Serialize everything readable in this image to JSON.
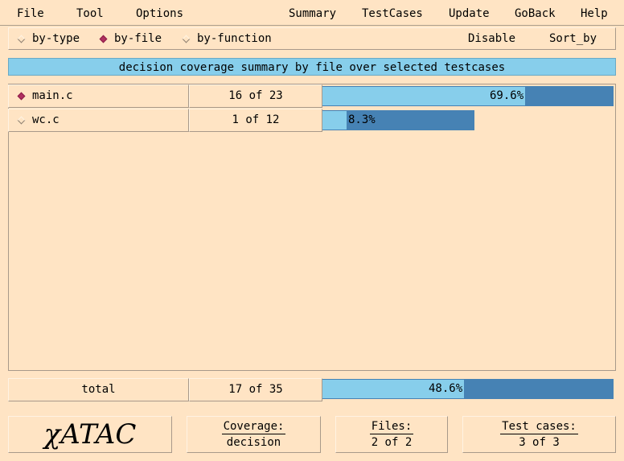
{
  "menubar": {
    "left": [
      "File",
      "Tool",
      "Options"
    ],
    "right": [
      "Summary",
      "TestCases",
      "Update",
      "GoBack",
      "Help"
    ]
  },
  "modes": {
    "options": [
      {
        "label": "by-type",
        "selected": false
      },
      {
        "label": "by-file",
        "selected": true
      },
      {
        "label": "by-function",
        "selected": false
      }
    ],
    "disable_label": "Disable",
    "sort_label": "Sort_by"
  },
  "banner": "decision coverage summary by file over selected testcases",
  "files": [
    {
      "name": "main.c",
      "selected": true,
      "count": "16 of 23",
      "percent_label": "69.6%",
      "fraction": 0.696
    },
    {
      "name": "wc.c",
      "selected": false,
      "count": "1 of 12",
      "percent_label": "8.3%",
      "fraction": 0.083
    }
  ],
  "total": {
    "label": "total",
    "count": "17 of 35",
    "percent_label": "48.6%",
    "fraction": 0.486
  },
  "status": {
    "logo": "χATAC",
    "coverage": {
      "title": "Coverage:",
      "value": "decision"
    },
    "files": {
      "title": "Files:",
      "value": "2 of 2"
    },
    "testcases": {
      "title": "Test cases:",
      "value": "3 of 3"
    }
  },
  "colors": {
    "background": "#ffe4c4",
    "bar_fill": "#87ceeb",
    "bar_track": "#4682b4",
    "selected_marker": "#b03060"
  }
}
